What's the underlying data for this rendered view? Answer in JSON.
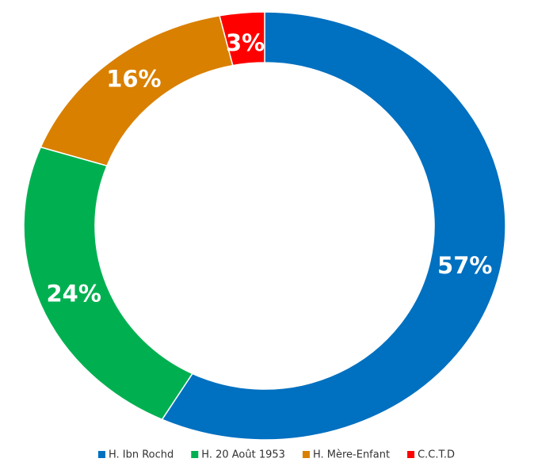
{
  "chart_data": {
    "type": "donut",
    "categories": [
      "H. Ibn Rochd",
      "H. 20 Août 1953",
      "H. Mère-Enfant",
      "C.C.T.D"
    ],
    "values": [
      57,
      24,
      16,
      3
    ],
    "value_labels": [
      "57%",
      "24%",
      "16%",
      "3%"
    ],
    "colors": [
      "#0070c0",
      "#00b050",
      "#d98000",
      "#ff0000"
    ],
    "legend": "bottom"
  }
}
